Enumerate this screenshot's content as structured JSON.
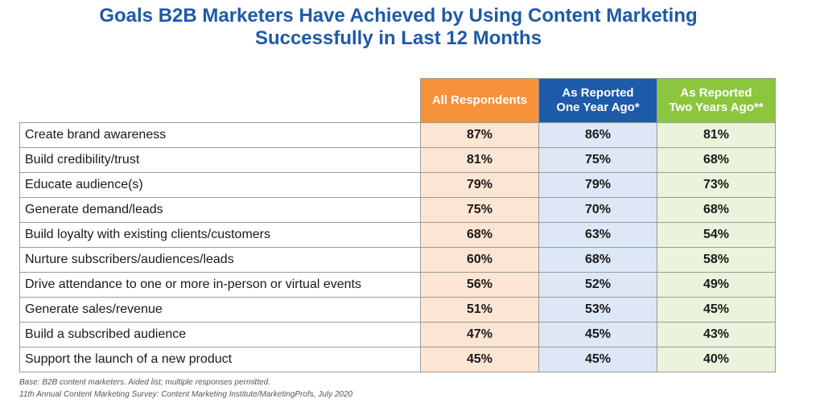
{
  "chart_data": {
    "type": "table",
    "title": "Goals B2B Marketers Have Achieved by Using Content Marketing Successfully in Last 12 Months",
    "title_lines": [
      "Goals B2B Marketers Have Achieved by Using Content Marketing",
      "Successfully in Last 12 Months"
    ],
    "columns": [
      {
        "key": "all",
        "label": "All Respondents",
        "lines": [
          "All Respondents"
        ],
        "color": "#f6923a"
      },
      {
        "key": "one",
        "label": "As Reported One Year Ago*",
        "lines": [
          "As Reported",
          "One Year Ago*"
        ],
        "color": "#1d5ba8"
      },
      {
        "key": "two",
        "label": "As Reported Two Years Ago**",
        "lines": [
          "As Reported",
          "Two Years Ago**"
        ],
        "color": "#8cc63e"
      }
    ],
    "rows": [
      {
        "goal": "Create brand awareness",
        "values": [
          "87%",
          "86%",
          "81%"
        ]
      },
      {
        "goal": "Build credibility/trust",
        "values": [
          "81%",
          "75%",
          "68%"
        ]
      },
      {
        "goal": "Educate audience(s)",
        "values": [
          "79%",
          "79%",
          "73%"
        ]
      },
      {
        "goal": "Generate demand/leads",
        "values": [
          "75%",
          "70%",
          "68%"
        ]
      },
      {
        "goal": "Build loyalty with existing clients/customers",
        "values": [
          "68%",
          "63%",
          "54%"
        ]
      },
      {
        "goal": "Nurture subscribers/audiences/leads",
        "values": [
          "60%",
          "68%",
          "58%"
        ]
      },
      {
        "goal": "Drive attendance to one or more in-person or virtual events",
        "values": [
          "56%",
          "52%",
          "49%"
        ]
      },
      {
        "goal": "Generate sales/revenue",
        "values": [
          "51%",
          "53%",
          "45%"
        ]
      },
      {
        "goal": "Build a subscribed audience",
        "values": [
          "47%",
          "45%",
          "43%"
        ]
      },
      {
        "goal": "Support the launch of a new product",
        "values": [
          "45%",
          "45%",
          "40%"
        ]
      }
    ]
  },
  "colors": {
    "title": "#1f5aa6",
    "all_respondents_fill": "#fde5d3",
    "one_year_fill": "#dde7f5",
    "two_years_fill": "#eaf4dc"
  },
  "footer": {
    "base": "Base: B2B content marketers. Aided list; multiple responses permitted.",
    "source": "11th Annual Content Marketing Survey: Content Marketing Institute/MarketingProfs, July 2020"
  }
}
